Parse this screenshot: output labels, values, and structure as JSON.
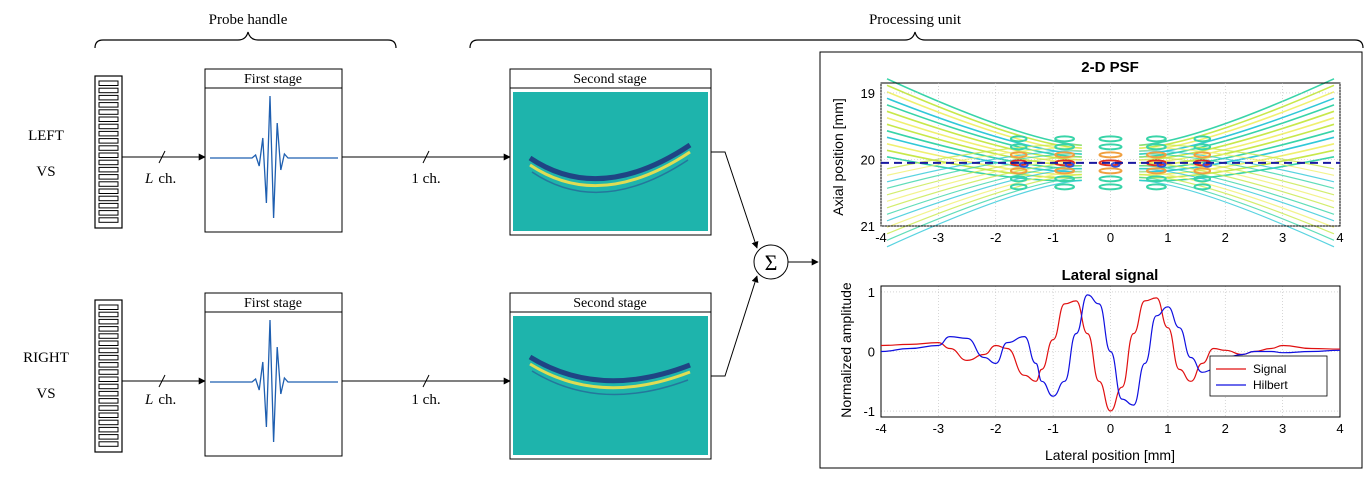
{
  "labels": {
    "probe_handle": "Probe handle",
    "processing_unit": "Processing unit",
    "left_vs": [
      "LEFT",
      "VS"
    ],
    "right_vs": [
      "RIGHT",
      "VS"
    ],
    "l_ch": "L",
    "ch": "ch.",
    "one_ch": "1 ch.",
    "first_stage": "First stage",
    "second_stage": "Second stage",
    "sum_symbol": "Σ"
  },
  "psf_panel": {
    "title": "2-D PSF",
    "ylabel": "Axial position [mm]",
    "x_ticks": [
      "-4",
      "-3",
      "-2",
      "-1",
      "0",
      "1",
      "2",
      "3",
      "4"
    ],
    "y_ticks": [
      "19",
      "20",
      "21"
    ],
    "dashed_line_y": 20.05,
    "colors": {
      "contours": [
        "#f0f070",
        "#c8e84a",
        "#38d4a8",
        "#30c8d8",
        "#f0a040",
        "#e03020",
        "#3050e0"
      ],
      "dashed": "#1a1aa0"
    }
  },
  "chart_data": [
    {
      "type": "line",
      "title": "Lateral signal",
      "xlabel": "Lateral position [mm]",
      "ylabel": "Normalized amplitude",
      "xlim": [
        -4,
        4
      ],
      "ylim": [
        -1.1,
        1.1
      ],
      "x_ticks": [
        "-4",
        "-3",
        "-2",
        "-1",
        "0",
        "1",
        "2",
        "3",
        "4"
      ],
      "y_ticks": [
        "-1",
        "0",
        "1"
      ],
      "grid": true,
      "legend_position": "bottom-right",
      "x": [
        -4,
        -3.5,
        -3,
        -2.8,
        -2.5,
        -2.2,
        -2,
        -1.8,
        -1.5,
        -1.3,
        -1.2,
        -1,
        -0.8,
        -0.6,
        -0.4,
        -0.2,
        0,
        0.2,
        0.4,
        0.6,
        0.8,
        1,
        1.2,
        1.4,
        1.6,
        1.8,
        2,
        2.3,
        2.5,
        2.8,
        3,
        3.5,
        4
      ],
      "series": [
        {
          "name": "Signal",
          "color": "#e01010",
          "values": [
            0.1,
            0.12,
            0.15,
            0.05,
            -0.15,
            -0.05,
            0.1,
            0.05,
            -0.4,
            -0.5,
            -0.3,
            0.2,
            0.8,
            0.85,
            0.3,
            -0.5,
            -1.0,
            -0.6,
            0.3,
            0.85,
            0.9,
            0.4,
            -0.3,
            -0.5,
            -0.2,
            0.05,
            0.02,
            -0.05,
            0.0,
            0.05,
            0.1,
            0.05,
            0.04
          ]
        },
        {
          "name": "Hilbert",
          "color": "#1010e0",
          "values": [
            0.0,
            0.05,
            0.1,
            0.25,
            0.22,
            -0.1,
            -0.2,
            0.15,
            0.25,
            -0.2,
            -0.5,
            -0.75,
            -0.5,
            0.3,
            0.95,
            0.8,
            0.0,
            -0.8,
            -0.9,
            -0.2,
            0.6,
            0.75,
            0.4,
            -0.1,
            -0.35,
            -0.3,
            -0.1,
            -0.05,
            0.0,
            0.0,
            -0.02,
            0.0,
            0.02
          ]
        }
      ]
    }
  ]
}
